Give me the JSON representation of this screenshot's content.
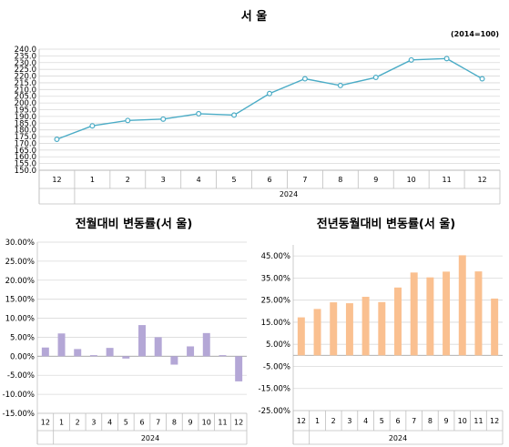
{
  "chart_data": [
    {
      "type": "line",
      "title": "서  울",
      "note": "(2014=100)",
      "categories": [
        "12",
        "1",
        "2",
        "3",
        "4",
        "5",
        "6",
        "7",
        "8",
        "9",
        "10",
        "11",
        "12"
      ],
      "group_label": "2024",
      "yticks": [
        "240.0",
        "235.0",
        "230.0",
        "225.0",
        "220.0",
        "215.0",
        "210.0",
        "205.0",
        "200.0",
        "195.0",
        "190.0",
        "185.0",
        "180.0",
        "175.0",
        "170.0",
        "165.0",
        "160.0",
        "155.0",
        "150.0"
      ],
      "ylim": [
        150,
        240
      ],
      "series": [
        {
          "values": [
            173.0,
            183.0,
            187.0,
            188.0,
            192.0,
            191.0,
            207.0,
            218.0,
            213.0,
            219.0,
            232.0,
            233.0,
            218.0
          ],
          "color": "#4bacc6"
        }
      ],
      "grid": true
    },
    {
      "type": "bar",
      "title": "전월대비 변동률(서  울)",
      "categories": [
        "12",
        "1",
        "2",
        "3",
        "4",
        "5",
        "6",
        "7",
        "8",
        "9",
        "10",
        "11",
        "12"
      ],
      "group_label": "2024",
      "yticks": [
        "30.00%",
        "25.00%",
        "20.00%",
        "15.00%",
        "10.00%",
        "5.00%",
        "0.00%",
        "-5.00%",
        "-10.00%",
        "-15.00%"
      ],
      "ylim": [
        -15,
        30
      ],
      "series": [
        {
          "values": [
            2.3,
            6.0,
            1.9,
            0.3,
            2.2,
            -0.6,
            8.2,
            5.0,
            -2.2,
            2.6,
            6.1,
            0.3,
            -6.6
          ],
          "color": "#b4a7d6"
        }
      ],
      "grid": true
    },
    {
      "type": "bar",
      "title": "전년동월대비 변동률(서  울)",
      "categories": [
        "12",
        "1",
        "2",
        "3",
        "4",
        "5",
        "6",
        "7",
        "8",
        "9",
        "10",
        "11",
        "12"
      ],
      "group_label": "2024",
      "yticks": [
        "45.00%",
        "35.00%",
        "25.00%",
        "15.00%",
        "5.00%",
        "-5.00%",
        "-15.00%",
        "-25.00%"
      ],
      "ylim": [
        -25,
        50
      ],
      "series": [
        {
          "values": [
            17.2,
            21.0,
            24.0,
            23.6,
            26.5,
            24.1,
            30.7,
            37.5,
            35.3,
            37.9,
            45.3,
            38.0,
            25.7
          ],
          "color": "#fac090"
        }
      ],
      "grid": true
    }
  ]
}
